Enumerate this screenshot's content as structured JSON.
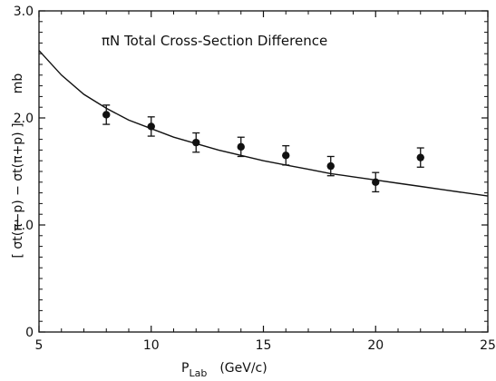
{
  "chart_data": {
    "type": "scatter",
    "title": "πN  Total  Cross-Section  Difference",
    "xlabel_main": "P",
    "xlabel_sub": "Lab",
    "xlabel_unit": "(GeV/c)",
    "ylabel": "[ σt(π−p) − σt(π+p) ]",
    "ylabel_unit": "mb",
    "xlim": [
      5,
      25
    ],
    "ylim": [
      0,
      3.0
    ],
    "xticks": [
      5,
      10,
      15,
      20,
      25
    ],
    "xtick_labels": [
      "5",
      "10",
      "15",
      "20",
      "25"
    ],
    "yticks": [
      0,
      1.0,
      2.0,
      3.0
    ],
    "ytick_labels": [
      "0",
      "1.0",
      "2.0",
      "3.0"
    ],
    "grid": false,
    "series": [
      {
        "kind": "points_with_error_bars",
        "points": [
          {
            "x": 8,
            "y": 2.03,
            "err": 0.09
          },
          {
            "x": 10,
            "y": 1.92,
            "err": 0.09
          },
          {
            "x": 12,
            "y": 1.77,
            "err": 0.09
          },
          {
            "x": 14,
            "y": 1.73,
            "err": 0.09
          },
          {
            "x": 16,
            "y": 1.65,
            "err": 0.09
          },
          {
            "x": 18,
            "y": 1.55,
            "err": 0.09
          },
          {
            "x": 20,
            "y": 1.4,
            "err": 0.09
          },
          {
            "x": 22,
            "y": 1.63,
            "err": 0.09
          }
        ]
      },
      {
        "kind": "curve",
        "x": [
          5,
          6,
          7,
          8,
          9,
          10,
          11,
          12,
          13,
          14,
          15,
          16,
          17,
          18,
          19,
          20,
          21,
          22,
          23,
          24,
          25
        ],
        "y": [
          2.63,
          2.4,
          2.22,
          2.09,
          1.98,
          1.9,
          1.82,
          1.76,
          1.7,
          1.65,
          1.6,
          1.56,
          1.52,
          1.48,
          1.45,
          1.42,
          1.39,
          1.36,
          1.33,
          1.3,
          1.27
        ]
      }
    ]
  }
}
